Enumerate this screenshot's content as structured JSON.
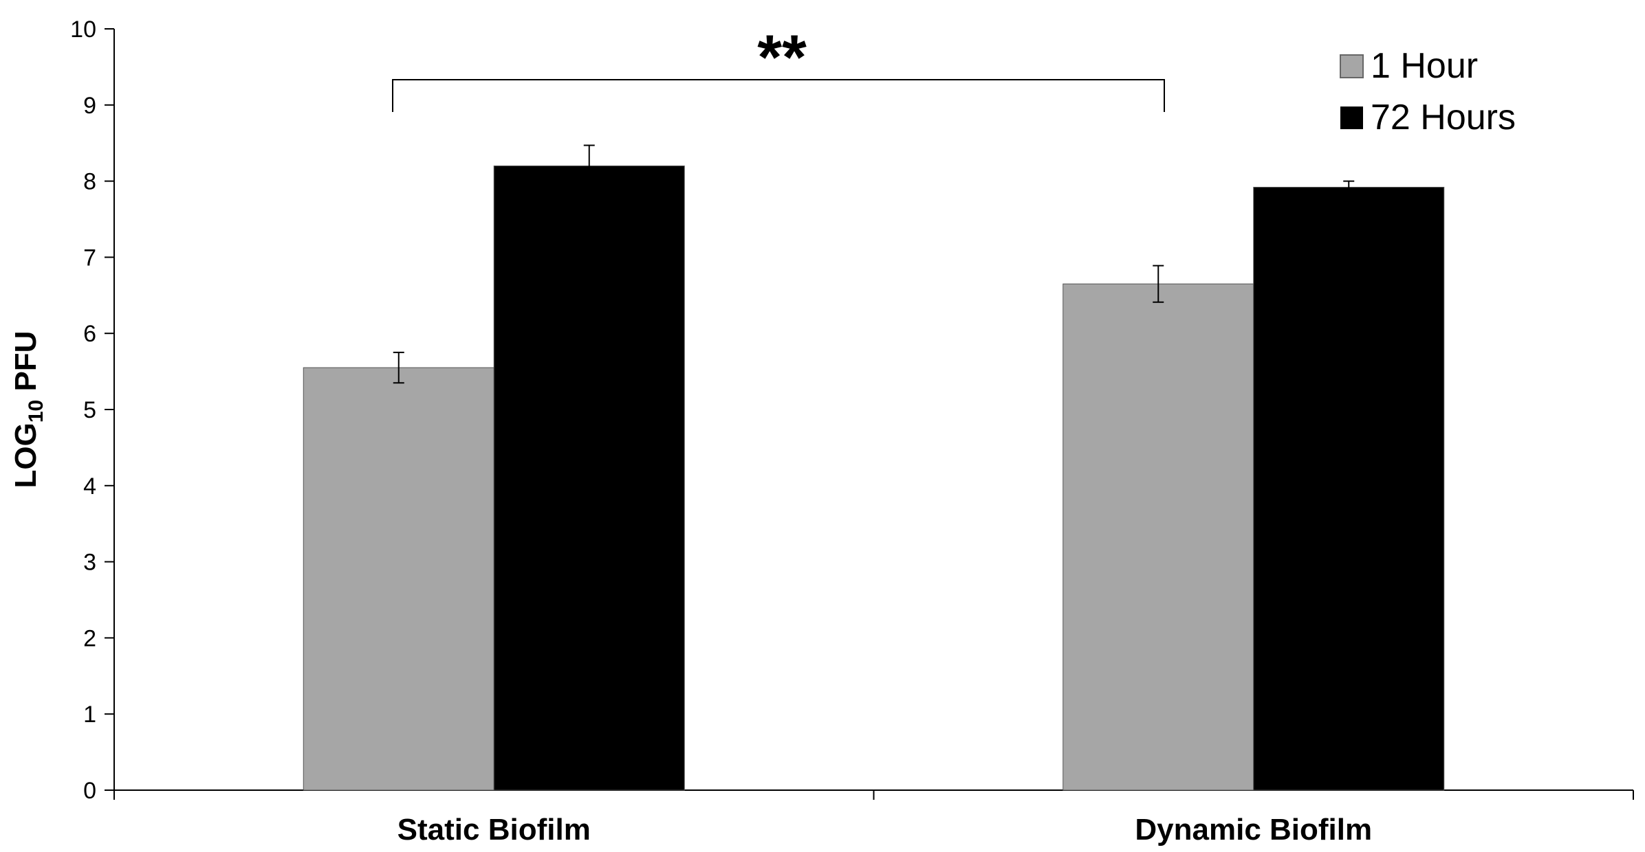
{
  "chart_data": {
    "type": "bar",
    "categories": [
      "Static Biofilm",
      "Dynamic Biofilm"
    ],
    "series": [
      {
        "name": "1 Hour",
        "values": [
          5.55,
          6.65
        ],
        "errors": [
          0.2,
          0.24
        ],
        "color": "#a6a6a6"
      },
      {
        "name": "72 Hours",
        "values": [
          8.2,
          7.92
        ],
        "errors": [
          0.27,
          0.08
        ],
        "color": "#000000"
      }
    ],
    "ylabel_main": "LOG",
    "ylabel_sub": "10",
    "ylabel_tail": " PFU",
    "xlabel": "",
    "ylim": [
      0,
      10
    ],
    "yticks": [
      "0",
      "1",
      "2",
      "3",
      "4",
      "5",
      "6",
      "7",
      "8",
      "9",
      "10"
    ],
    "significance": {
      "label": "**",
      "between": [
        "Static Biofilm",
        "Dynamic Biofilm"
      ],
      "series": "1 Hour"
    },
    "legend_position": "top-right",
    "grid": false
  }
}
